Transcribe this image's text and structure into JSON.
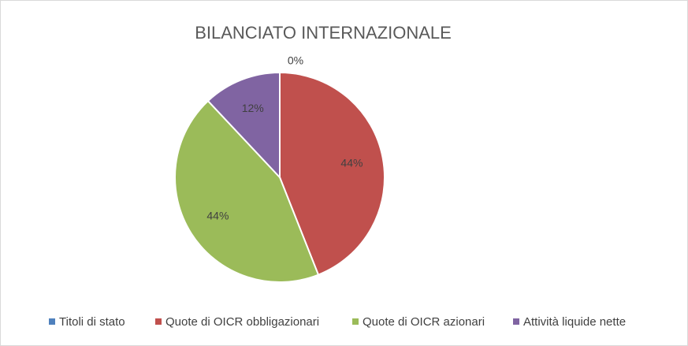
{
  "chart_data": {
    "type": "pie",
    "title": "BILANCIATO INTERNAZIONALE",
    "categories": [
      "Titoli di stato",
      "Quote di OICR obbligazionari",
      "Quote di OICR azionari",
      "Attività liquide nette"
    ],
    "values": [
      0,
      44,
      44,
      12
    ],
    "value_labels": [
      "0%",
      "44%",
      "44%",
      "12%"
    ],
    "colors": [
      "#4f81bd",
      "#c0504d",
      "#9bbb59",
      "#8064a2"
    ],
    "legend": "bottom"
  }
}
